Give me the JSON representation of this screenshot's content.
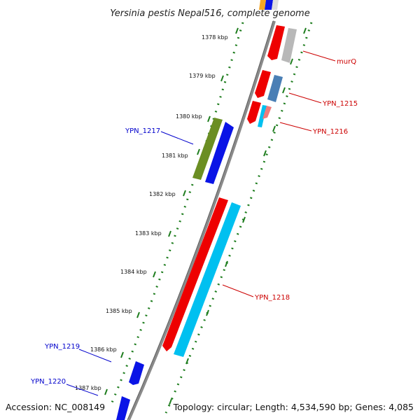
{
  "title": "Yersinia pestis Nepal516, complete genome",
  "accession": "Accession: NC_008149",
  "topology": "Topology: circular; Length: 4,534,590 bp; Genes: 4,085",
  "ticks": [
    "1378 kbp",
    "1379 kbp",
    "1380 kbp",
    "1381 kbp",
    "1382 kbp",
    "1383 kbp",
    "1384 kbp",
    "1385 kbp",
    "1386 kbp",
    "1387 kbp"
  ],
  "colors": {
    "backbone": "#8a8a8a",
    "dots": "#1e7d1e",
    "forward_label": "#0000cc",
    "reverse_label": "#cc0000",
    "red": "#ee0000",
    "blue": "#0a14e6",
    "cyan": "#00c0f0",
    "olive": "#6b8e23",
    "grey": "#b8b8b8",
    "steel": "#4a7fb5",
    "pink": "#f07a7a",
    "orange": "#f5a623"
  },
  "genes": [
    {
      "label": "murQ",
      "strand": "reverse",
      "label_color": "#cc0000"
    },
    {
      "label": "YPN_1215",
      "strand": "reverse",
      "label_color": "#cc0000"
    },
    {
      "label": "YPN_1216",
      "strand": "reverse",
      "label_color": "#cc0000"
    },
    {
      "label": "YPN_1217",
      "strand": "forward",
      "label_color": "#0000cc"
    },
    {
      "label": "YPN_1218",
      "strand": "reverse",
      "label_color": "#cc0000"
    },
    {
      "label": "YPN_1219",
      "strand": "forward",
      "label_color": "#0000cc"
    },
    {
      "label": "YPN_1220",
      "strand": "forward",
      "label_color": "#0000cc"
    }
  ]
}
